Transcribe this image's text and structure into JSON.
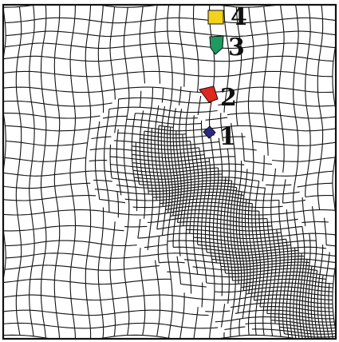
{
  "cells": [
    {
      "label": "1",
      "color": "#2a2a86"
    },
    {
      "label": "2",
      "color": "#e0281e"
    },
    {
      "label": "3",
      "color": "#1e9a5e"
    },
    {
      "label": "4",
      "color": "#f2d21a"
    }
  ]
}
